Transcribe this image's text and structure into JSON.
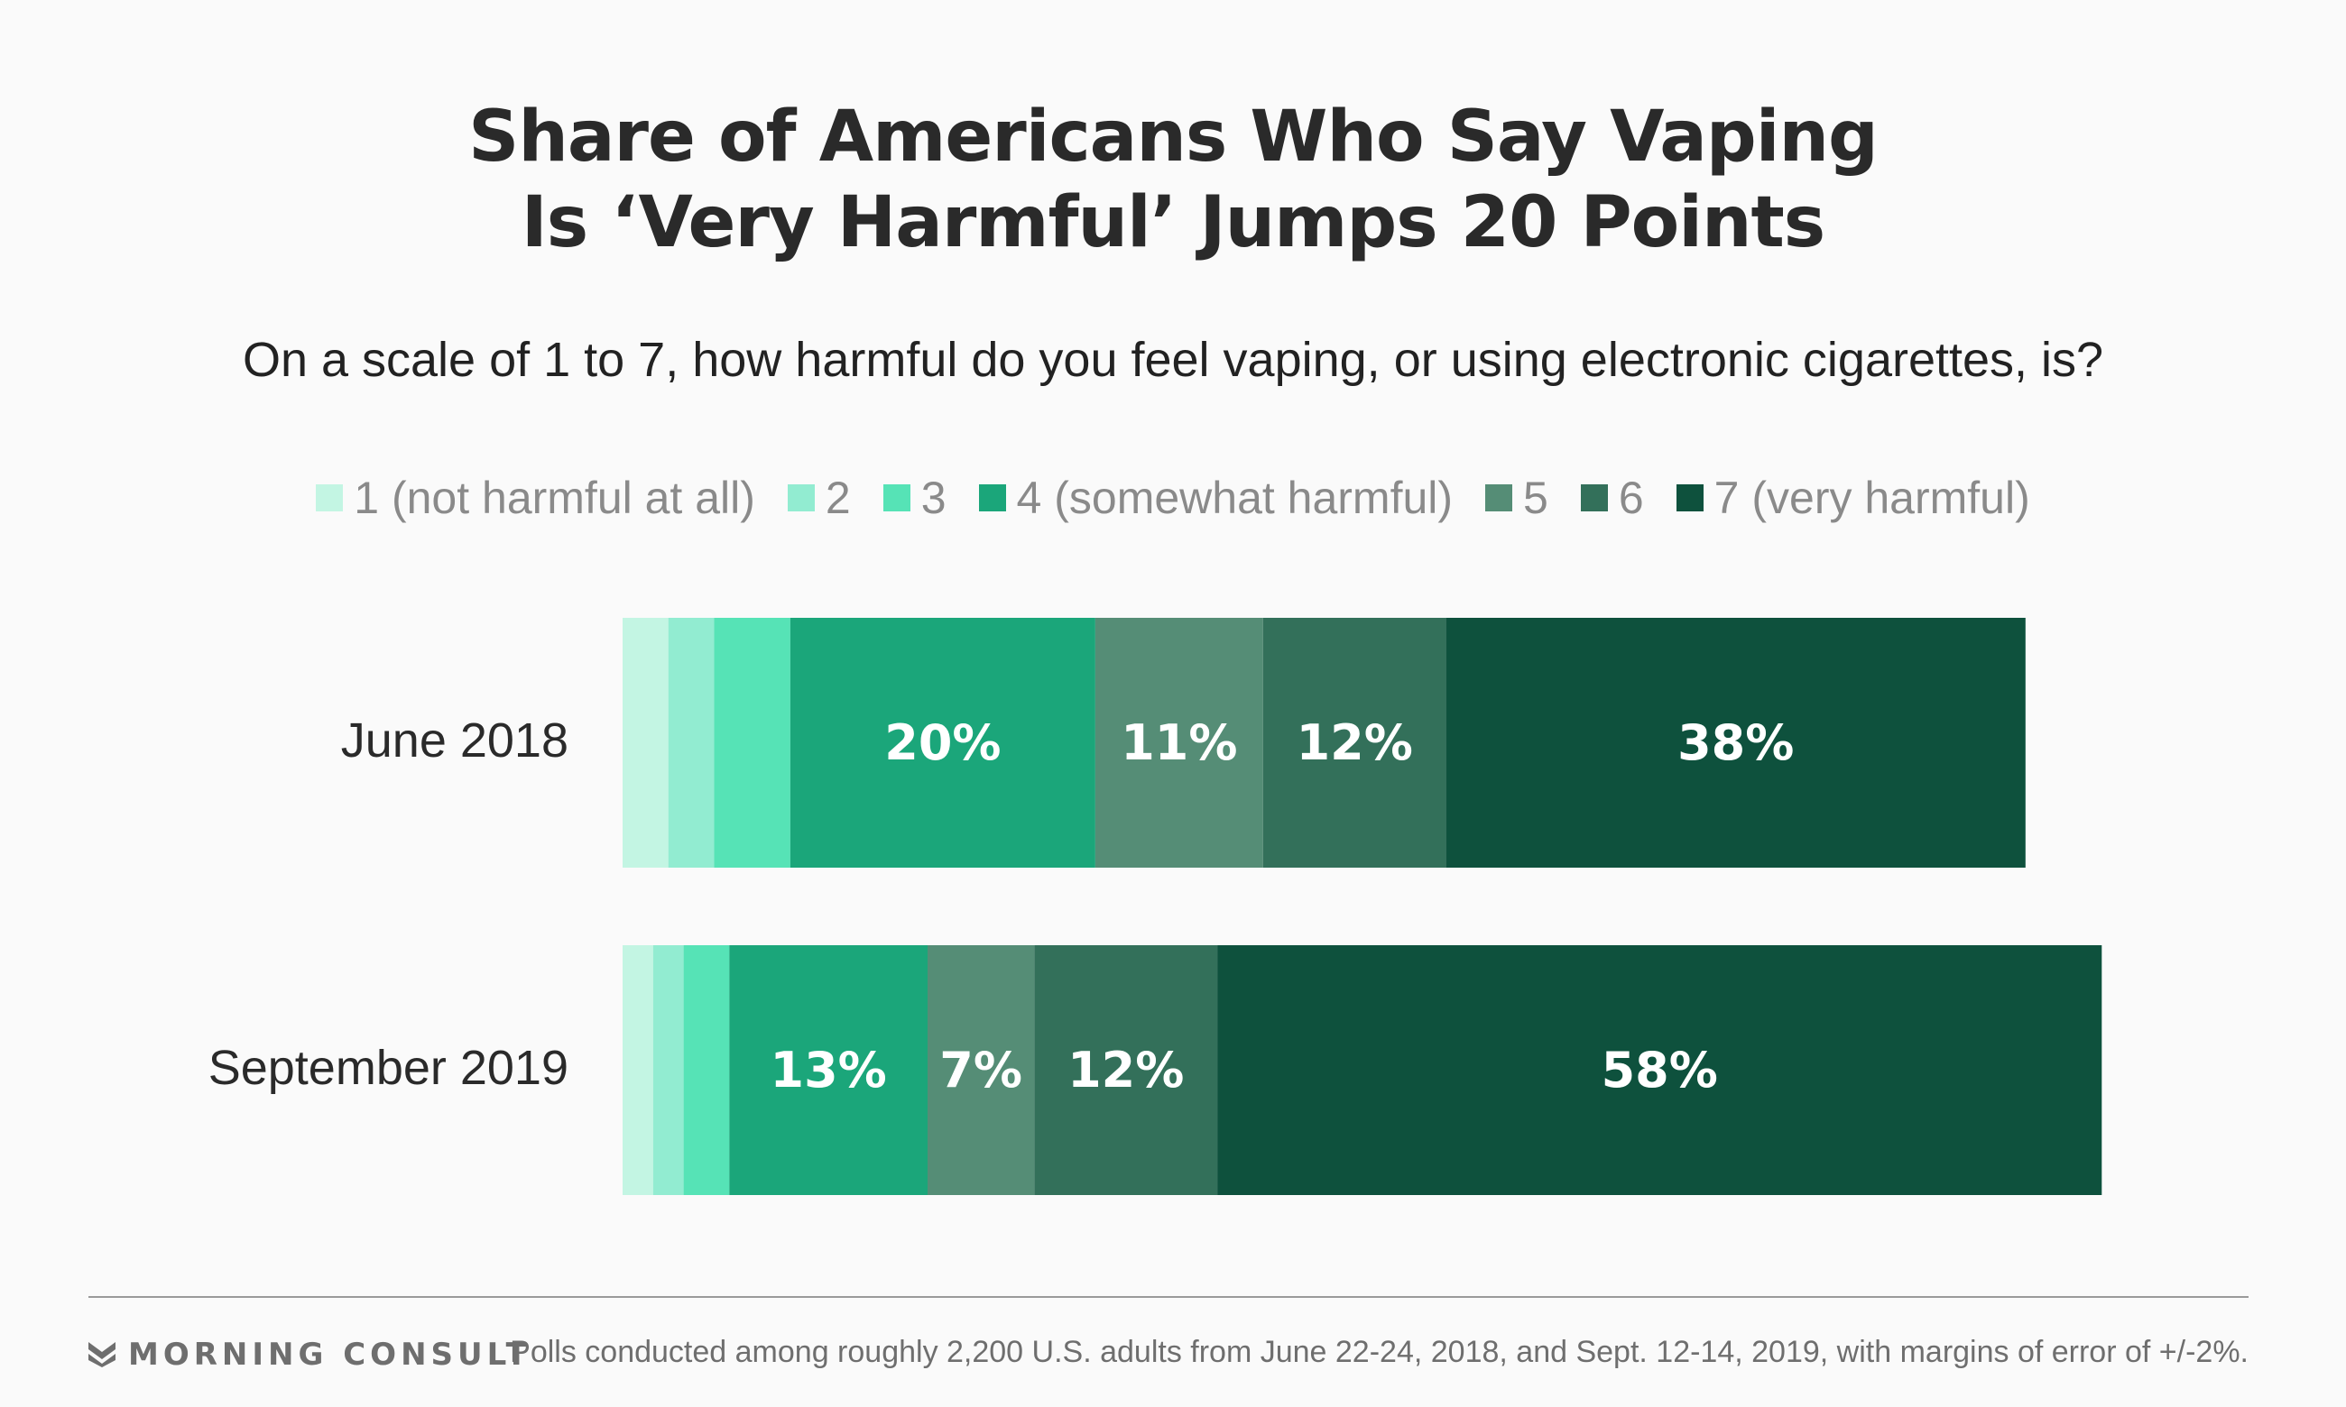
{
  "title_lines": [
    "Share of Americans Who Say Vaping",
    "Is ‘Very Harmful’ Jumps 20 Points"
  ],
  "subtitle": "On a scale of 1 to 7, how harmful do you feel vaping, or using electronic cigarettes, is?",
  "legend": [
    {
      "label": "1 (not harmful at all)",
      "color": "#c3f5e3"
    },
    {
      "label": "2",
      "color": "#92ecd1"
    },
    {
      "label": "3",
      "color": "#56e3b6"
    },
    {
      "label": "4 (somewhat harmful)",
      "color": "#1ba67a"
    },
    {
      "label": "5",
      "color": "#558d76"
    },
    {
      "label": "6",
      "color": "#33705a"
    },
    {
      "label": "7 (very harmful)",
      "color": "#0e513d"
    }
  ],
  "chart_data": {
    "type": "bar",
    "orientation": "horizontal",
    "stacked": true,
    "normalized_to": 100,
    "categories": [
      "June 2018",
      "September 2019"
    ],
    "series": [
      {
        "name": "1 (not harmful at all)",
        "values": [
          3,
          2
        ],
        "labels": [
          "",
          ""
        ]
      },
      {
        "name": "2",
        "values": [
          3,
          2
        ],
        "labels": [
          "",
          ""
        ]
      },
      {
        "name": "3",
        "values": [
          5,
          3
        ],
        "labels": [
          "",
          ""
        ]
      },
      {
        "name": "4 (somewhat harmful)",
        "values": [
          20,
          13
        ],
        "labels": [
          "20%",
          "13%"
        ]
      },
      {
        "name": "5",
        "values": [
          11,
          7
        ],
        "labels": [
          "11%",
          "7%"
        ]
      },
      {
        "name": "6",
        "values": [
          12,
          12
        ],
        "labels": [
          "12%",
          "12%"
        ]
      },
      {
        "name": "7 (very harmful)",
        "values": [
          38,
          58
        ],
        "labels": [
          "38%",
          "58%"
        ]
      }
    ]
  },
  "footer": {
    "brand": "MORNING CONSULT",
    "note": "Polls conducted among roughly 2,200 U.S. adults from June 22-24, 2018, and Sept. 12-14, 2019, with margins of error of +/-2%."
  }
}
